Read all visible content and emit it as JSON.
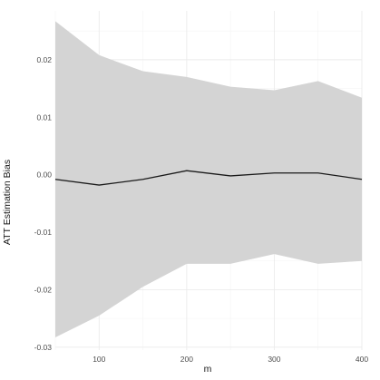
{
  "chart_data": {
    "type": "line",
    "title": "",
    "xlabel": "m",
    "ylabel": "ATT Estimation Bias",
    "x": [
      50,
      100,
      150,
      200,
      250,
      300,
      350,
      400
    ],
    "series": [
      {
        "values": [
          -0.0008,
          -0.0018,
          -0.0008,
          0.0007,
          -0.0002,
          0.0003,
          0.0003,
          -0.0008
        ],
        "lower": [
          -0.0283,
          -0.0245,
          -0.0195,
          -0.0155,
          -0.0155,
          -0.0138,
          -0.0155,
          -0.015
        ],
        "upper": [
          0.0267,
          0.0208,
          0.018,
          0.017,
          0.0153,
          0.0147,
          0.0163,
          0.0134
        ]
      }
    ],
    "xticks": [
      100,
      200,
      300,
      400
    ],
    "xtick_labels": [
      "100",
      "200",
      "300",
      "400"
    ],
    "yticks": [
      -0.03,
      -0.02,
      -0.01,
      0.0,
      0.01,
      0.02
    ],
    "ytick_labels": [
      "-0.03",
      "-0.02",
      "-0.01",
      "0.00",
      "0.01",
      "0.02"
    ],
    "xlim": [
      50,
      400
    ],
    "ylim": [
      -0.0305,
      0.0285
    ],
    "grid": true,
    "band_color": "#d4d4d4",
    "line_color": "#1a1a1a",
    "grid_color": "#ebebeb"
  }
}
